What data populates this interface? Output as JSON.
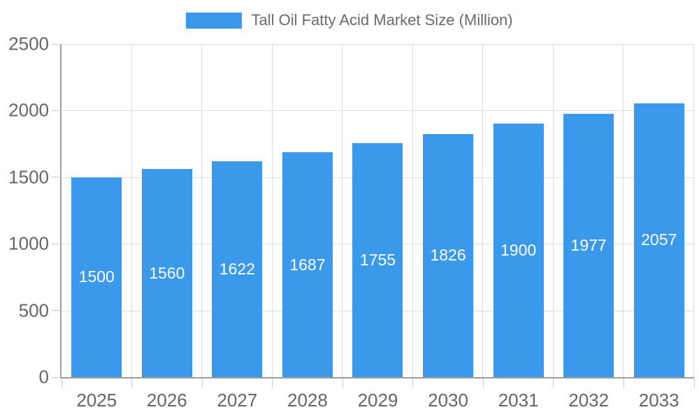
{
  "chart_data": {
    "type": "bar",
    "title": "Tall Oil Fatty Acid Market Size (Million)",
    "legend_label": "Tall Oil Fatty Acid Market Size (Million)",
    "legend_position": "top",
    "categories": [
      "2025",
      "2026",
      "2027",
      "2028",
      "2029",
      "2030",
      "2031",
      "2032",
      "2033"
    ],
    "values": [
      1500,
      1560,
      1622,
      1687,
      1755,
      1826,
      1900,
      1977,
      2057
    ],
    "xlabel": "",
    "ylabel": "",
    "ylim": [
      0,
      2500
    ],
    "yticks": [
      0,
      500,
      1000,
      1500,
      2000,
      2500
    ],
    "grid": true,
    "value_labels_shown_inside_bars": true
  },
  "colors": {
    "bar": "#3b99ec",
    "grid": "#dcdcdc",
    "axis": "#9c9c9c",
    "tick": "#c9c9c9",
    "axis_label": "#666666",
    "legend_text": "#6b6b6b",
    "value_label": "#ffffff",
    "background": "#ffffff"
  }
}
